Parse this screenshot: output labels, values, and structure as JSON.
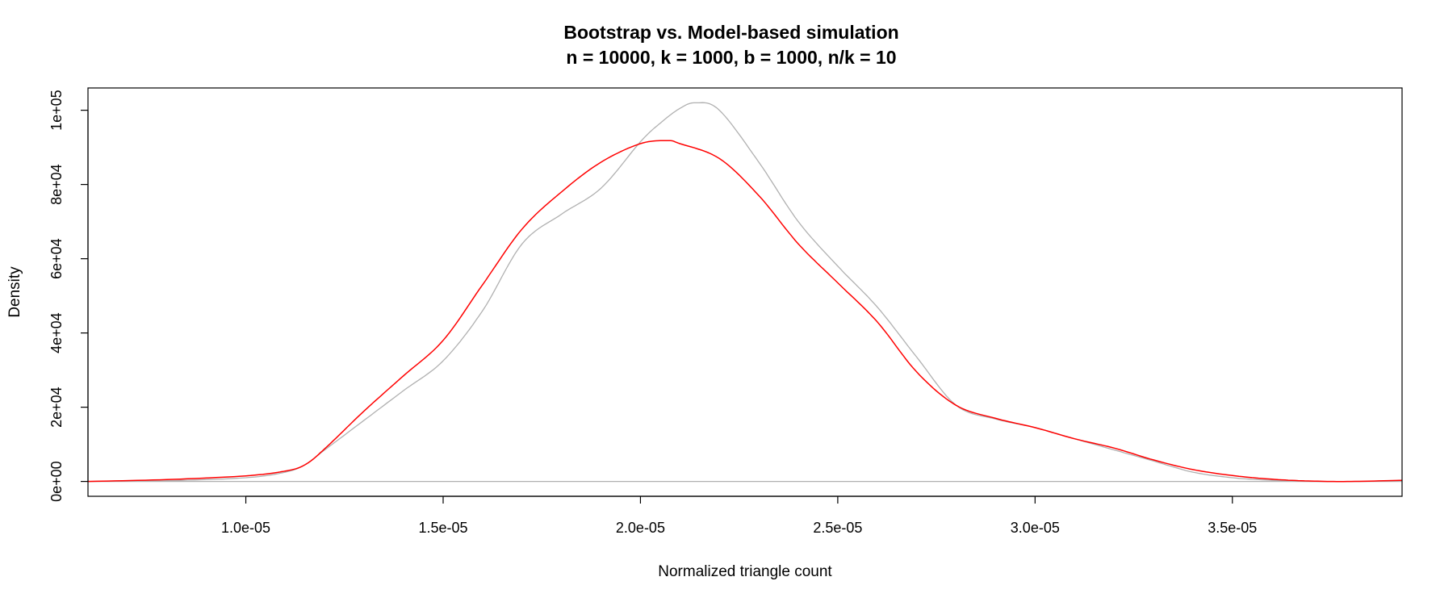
{
  "chart_data": {
    "type": "line",
    "title": "Bootstrap vs. Model-based simulation",
    "subtitle": "n = 10000, k = 1000, b = 1000, n/k = 10",
    "xlabel": "Normalized triangle count",
    "ylabel": "Density",
    "xlim": [
      6e-06,
      3.93e-05
    ],
    "ylim": [
      -4000,
      106000
    ],
    "x_ticks": [
      1e-05,
      1.5e-05,
      2e-05,
      2.5e-05,
      3e-05,
      3.5e-05
    ],
    "x_tick_labels": [
      "1.0e-05",
      "1.5e-05",
      "2.0e-05",
      "2.5e-05",
      "3.0e-05",
      "3.5e-05"
    ],
    "y_ticks": [
      0,
      20000,
      40000,
      60000,
      80000,
      100000
    ],
    "y_tick_labels": [
      "0e+00",
      "2e+04",
      "4e+04",
      "6e+04",
      "8e+04",
      "1e+05"
    ],
    "baseline": 0,
    "series": [
      {
        "name": "Bootstrap",
        "color": "#b0b0b0",
        "x": [
          6e-06,
          8e-06,
          1e-05,
          1.1e-05,
          1.15e-05,
          1.2e-05,
          1.3e-05,
          1.4e-05,
          1.5e-05,
          1.6e-05,
          1.7e-05,
          1.8e-05,
          1.9e-05,
          2e-05,
          2.05e-05,
          2.1e-05,
          2.14e-05,
          2.2e-05,
          2.3e-05,
          2.4e-05,
          2.5e-05,
          2.6e-05,
          2.7e-05,
          2.8e-05,
          2.9e-05,
          3e-05,
          3.1e-05,
          3.2e-05,
          3.3e-05,
          3.4e-05,
          3.5e-05,
          3.6e-05,
          3.7e-05,
          3.8e-05,
          3.93e-05
        ],
        "y": [
          0,
          200,
          1000,
          2500,
          4500,
          8500,
          16500,
          24500,
          32500,
          46000,
          64000,
          72000,
          79000,
          91500,
          96500,
          100500,
          102000,
          100000,
          86000,
          70000,
          58000,
          47000,
          33500,
          20500,
          16800,
          14500,
          11500,
          8500,
          5500,
          2500,
          1000,
          300,
          0,
          0,
          100
        ]
      },
      {
        "name": "Model-based",
        "color": "#ff0000",
        "x": [
          6e-06,
          8e-06,
          1e-05,
          1.1e-05,
          1.15e-05,
          1.2e-05,
          1.3e-05,
          1.4e-05,
          1.5e-05,
          1.6e-05,
          1.7e-05,
          1.8e-05,
          1.9e-05,
          2e-05,
          2.07e-05,
          2.1e-05,
          2.2e-05,
          2.3e-05,
          2.4e-05,
          2.5e-05,
          2.6e-05,
          2.7e-05,
          2.8e-05,
          2.9e-05,
          3e-05,
          3.1e-05,
          3.2e-05,
          3.3e-05,
          3.4e-05,
          3.5e-05,
          3.6e-05,
          3.7e-05,
          3.8e-05,
          3.93e-05
        ],
        "y": [
          0,
          500,
          1500,
          2800,
          4500,
          8800,
          19000,
          28500,
          38000,
          53000,
          68000,
          78000,
          86000,
          91000,
          91800,
          91000,
          87000,
          77000,
          64000,
          53500,
          43000,
          29500,
          20500,
          17000,
          14500,
          11500,
          9000,
          5800,
          3200,
          1600,
          600,
          100,
          0,
          300
        ]
      }
    ]
  }
}
